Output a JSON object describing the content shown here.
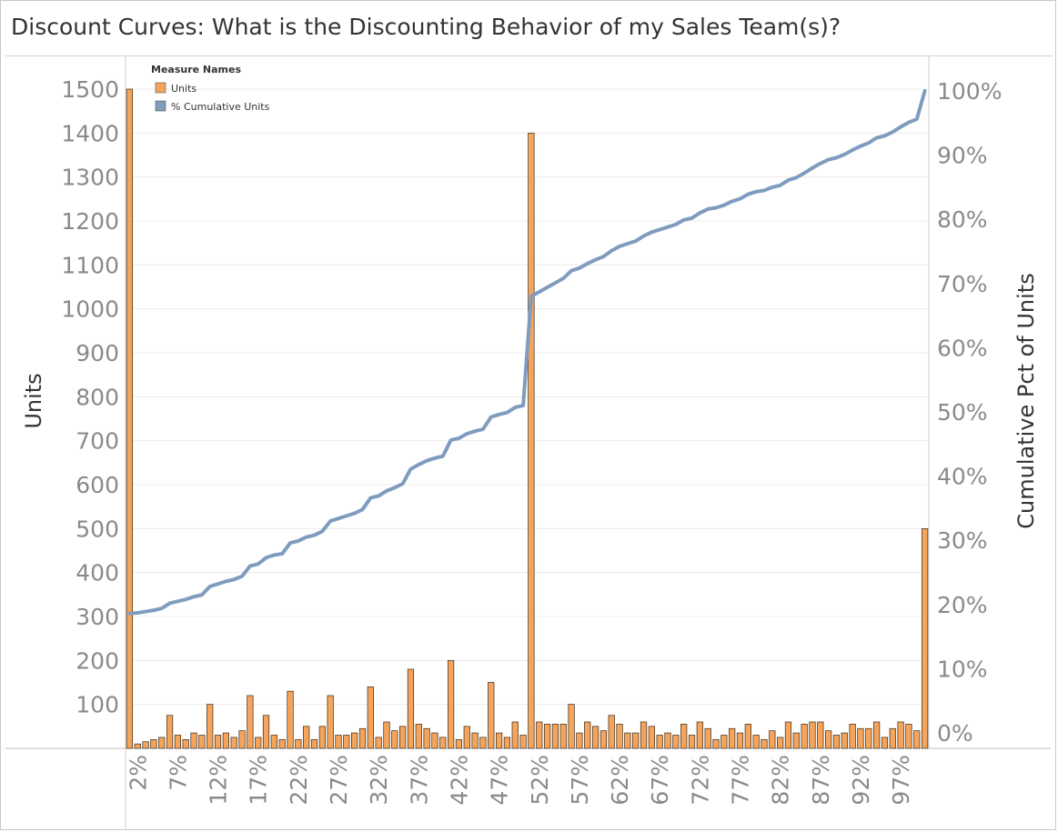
{
  "title": "Discount Curves: What is the Discounting Behavior of my Sales Team(s)?",
  "colors": {
    "units": "#F4A45B",
    "cumulative": "#7F9CBF",
    "grid": "#ececec",
    "axis_line": "#cccccc"
  },
  "legend": {
    "title": "Measure Names",
    "items": [
      {
        "label": "Units",
        "color": "#F4A45B"
      },
      {
        "label": "% Cumulative Units",
        "color": "#7F9CBF"
      }
    ]
  },
  "chart_data": {
    "type": "bar+line",
    "title": "Discount Curves: What is the Discounting Behavior of my Sales Team(s)?",
    "xlabel": "",
    "ylabel": "Units",
    "y2label": "Cumulative Pct of Units",
    "ylim": [
      0,
      1500
    ],
    "y2lim": [
      0,
      100
    ],
    "y_ticks": [
      100,
      200,
      300,
      400,
      500,
      600,
      700,
      800,
      900,
      1000,
      1100,
      1200,
      1300,
      1400,
      1500
    ],
    "y2_ticks": [
      "0%",
      "10%",
      "20%",
      "30%",
      "40%",
      "50%",
      "60%",
      "70%",
      "80%",
      "90%",
      "100%"
    ],
    "x_tick_labels": [
      "2%",
      "7%",
      "12%",
      "17%",
      "22%",
      "27%",
      "32%",
      "37%",
      "42%",
      "47%",
      "52%",
      "57%",
      "62%",
      "67%",
      "72%",
      "77%",
      "82%",
      "87%",
      "92%",
      "97%"
    ],
    "x_tick_values": [
      2,
      7,
      12,
      17,
      22,
      27,
      32,
      37,
      42,
      47,
      52,
      57,
      62,
      67,
      72,
      77,
      82,
      87,
      92,
      97
    ],
    "x": [
      1,
      2,
      3,
      4,
      5,
      6,
      7,
      8,
      9,
      10,
      11,
      12,
      13,
      14,
      15,
      16,
      17,
      18,
      19,
      20,
      21,
      22,
      23,
      24,
      25,
      26,
      27,
      28,
      29,
      30,
      31,
      32,
      33,
      34,
      35,
      36,
      37,
      38,
      39,
      40,
      41,
      42,
      43,
      44,
      45,
      46,
      47,
      48,
      49,
      50,
      51,
      52,
      53,
      54,
      55,
      56,
      57,
      58,
      59,
      60,
      61,
      62,
      63,
      64,
      65,
      66,
      67,
      68,
      69,
      70,
      71,
      72,
      73,
      74,
      75,
      76,
      77,
      78,
      79,
      80,
      81,
      82,
      83,
      84,
      85,
      86,
      87,
      88,
      89,
      90,
      91,
      92,
      93,
      94,
      95,
      96,
      97,
      98,
      99,
      100
    ],
    "series": [
      {
        "name": "Units",
        "type": "bar",
        "axis": "left",
        "values": [
          1500,
          10,
          15,
          20,
          25,
          75,
          30,
          20,
          35,
          30,
          100,
          30,
          35,
          25,
          40,
          120,
          25,
          75,
          30,
          20,
          130,
          20,
          50,
          20,
          50,
          120,
          30,
          30,
          35,
          45,
          140,
          25,
          60,
          40,
          50,
          180,
          55,
          45,
          35,
          25,
          200,
          20,
          50,
          35,
          25,
          150,
          35,
          25,
          60,
          30,
          1400,
          60,
          55,
          55,
          55,
          100,
          35,
          60,
          50,
          40,
          75,
          55,
          35,
          35,
          60,
          50,
          30,
          35,
          30,
          55,
          30,
          60,
          45,
          20,
          30,
          45,
          35,
          55,
          30,
          20,
          40,
          25,
          60,
          35,
          55,
          60,
          60,
          40,
          30,
          35,
          55,
          45,
          45,
          60,
          25,
          45,
          60,
          55,
          40,
          500
        ]
      },
      {
        "name": "% Cumulative Units",
        "type": "line",
        "axis": "right",
        "values": [
          18.6,
          18.7,
          18.9,
          19.1,
          19.4,
          20.2,
          20.5,
          20.8,
          21.2,
          21.5,
          22.8,
          23.2,
          23.6,
          23.9,
          24.4,
          26.0,
          26.3,
          27.3,
          27.7,
          27.9,
          29.6,
          29.9,
          30.5,
          30.8,
          31.4,
          33.0,
          33.4,
          33.8,
          34.2,
          34.8,
          36.6,
          36.9,
          37.7,
          38.2,
          38.8,
          41.1,
          41.8,
          42.4,
          42.8,
          43.1,
          45.6,
          45.9,
          46.6,
          47.0,
          47.3,
          49.2,
          49.6,
          49.9,
          50.7,
          51.0,
          68.0,
          68.7,
          69.4,
          70.1,
          70.8,
          72.0,
          72.4,
          73.1,
          73.7,
          74.2,
          75.1,
          75.8,
          76.2,
          76.6,
          77.4,
          78.0,
          78.4,
          78.8,
          79.2,
          79.9,
          80.2,
          81.0,
          81.6,
          81.8,
          82.2,
          82.8,
          83.2,
          83.9,
          84.3,
          84.5,
          85.0,
          85.3,
          86.1,
          86.5,
          87.2,
          88.0,
          88.7,
          89.3,
          89.6,
          90.1,
          90.8,
          91.4,
          91.9,
          92.7,
          93.0,
          93.6,
          94.4,
          95.1,
          95.6,
          100.0
        ]
      }
    ],
    "grid": true,
    "legend_position": "top-left"
  }
}
